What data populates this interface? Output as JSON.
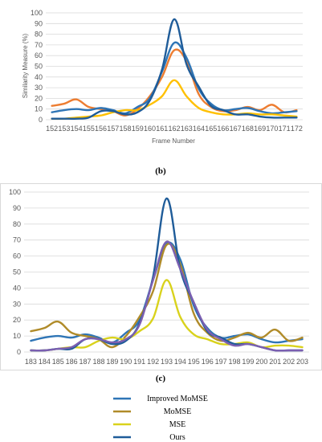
{
  "chart_data": [
    {
      "type": "line",
      "panel": "(b)",
      "xlabel": "Frame Number",
      "ylabel": "Similarity Measure (%)",
      "ylim": [
        0,
        100
      ],
      "yticks": [
        0,
        10,
        20,
        30,
        40,
        50,
        60,
        70,
        80,
        90,
        100
      ],
      "categories": [
        "152",
        "153",
        "154",
        "155",
        "156",
        "157",
        "158",
        "159",
        "160",
        "161",
        "162",
        "163",
        "164",
        "165",
        "166",
        "167",
        "168",
        "169",
        "170",
        "171",
        "172"
      ],
      "grid": true,
      "series": [
        {
          "name": "MoMSE",
          "color": "#ed7d31",
          "values": [
            13,
            15,
            19,
            12,
            10,
            8,
            4,
            10,
            22,
            40,
            65,
            55,
            24,
            12,
            8,
            9,
            12,
            9,
            14,
            7,
            9
          ]
        },
        {
          "name": "Improved MoMSE",
          "color": "#2e75b6",
          "values": [
            7,
            9,
            10,
            9,
            11,
            9,
            6,
            12,
            20,
            45,
            72,
            58,
            29,
            15,
            9,
            10,
            11,
            8,
            6,
            7,
            8
          ]
        },
        {
          "name": "MSE",
          "color": "#ffc000",
          "values": [
            1,
            1,
            2,
            3,
            4,
            7,
            9,
            9,
            14,
            22,
            37,
            22,
            11,
            7,
            5,
            5,
            6,
            5,
            5,
            4,
            3
          ]
        },
        {
          "name": "Ours",
          "color": "#1f5c99",
          "values": [
            1,
            1,
            1,
            2,
            8,
            8,
            5,
            7,
            18,
            47,
            94,
            52,
            31,
            13,
            9,
            5,
            5,
            3,
            2,
            2,
            2
          ]
        }
      ]
    },
    {
      "type": "line",
      "panel": "(c)",
      "ylim": [
        0,
        100
      ],
      "yticks": [
        0,
        10,
        20,
        30,
        40,
        50,
        60,
        70,
        80,
        90,
        100
      ],
      "categories": [
        "183",
        "184",
        "185",
        "186",
        "187",
        "188",
        "189",
        "190",
        "191",
        "192",
        "193",
        "194",
        "195",
        "196",
        "197",
        "198",
        "199",
        "200",
        "201",
        "202",
        "203"
      ],
      "grid": true,
      "legend_position": "bottom",
      "series": [
        {
          "name": "Improved MoMSE",
          "color": "#2e75b6",
          "values": [
            7,
            9,
            10,
            9,
            11,
            9,
            6,
            12,
            20,
            45,
            68,
            58,
            29,
            15,
            9,
            10,
            11,
            8,
            6,
            7,
            8
          ]
        },
        {
          "name": "MoMSE",
          "color": "#b08b29",
          "values": [
            13,
            15,
            19,
            12,
            10,
            8,
            3,
            10,
            22,
            38,
            67,
            55,
            24,
            12,
            7,
            9,
            12,
            9,
            14,
            7,
            9
          ]
        },
        {
          "name": "MSE",
          "color": "#d9d21c",
          "values": [
            1,
            1,
            2,
            3,
            3,
            7,
            9,
            8,
            13,
            21,
            45,
            22,
            11,
            8,
            5,
            5,
            6,
            3,
            4,
            4,
            3
          ]
        },
        {
          "name": "Ours",
          "color": "#1f5c99",
          "values": [
            1,
            1,
            2,
            2,
            8,
            8,
            5,
            7,
            18,
            47,
            96,
            52,
            31,
            13,
            9,
            5,
            5,
            3,
            1,
            1,
            1
          ]
        },
        {
          "name": "",
          "color": "#7b5fb1",
          "values": [
            1,
            1,
            2,
            3,
            8,
            8,
            6,
            8,
            17,
            45,
            69,
            52,
            31,
            14,
            8,
            4,
            5,
            3,
            1,
            1,
            1
          ]
        }
      ]
    }
  ],
  "legend": [
    {
      "label": "Improved MoMSE",
      "color": "#2e75b6"
    },
    {
      "label": "MoMSE",
      "color": "#b08b29"
    },
    {
      "label": "MSE",
      "color": "#d9d21c"
    },
    {
      "label": "Ours",
      "color": "#1f5c99"
    }
  ]
}
